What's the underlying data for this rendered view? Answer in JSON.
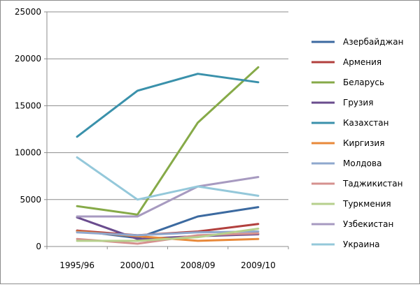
{
  "chart_data": {
    "type": "line",
    "categories": [
      "1995/96",
      "2000/01",
      "2008/09",
      "2009/10"
    ],
    "ylim": [
      0,
      25000
    ],
    "yticks": [
      0,
      5000,
      10000,
      15000,
      20000,
      25000
    ],
    "y_tick_labels": [
      "0",
      "5000",
      "10000",
      "15000",
      "20000",
      "25000"
    ],
    "grid": "horizontal major",
    "legend_position": "right",
    "series": [
      {
        "name": "Азербайджан",
        "color": "#3C6AA0",
        "values": [
          1700,
          900,
          3200,
          4200
        ]
      },
      {
        "name": "Армения",
        "color": "#B2403E",
        "values": [
          1700,
          1200,
          1600,
          2400
        ]
      },
      {
        "name": "Беларусь",
        "color": "#86AA48",
        "values": [
          4300,
          3400,
          13200,
          19100
        ]
      },
      {
        "name": "Грузия",
        "color": "#6A4C8E",
        "values": [
          3100,
          800,
          1100,
          1300
        ]
      },
      {
        "name": "Казахстан",
        "color": "#3A91AB",
        "values": [
          11700,
          16600,
          18400,
          17500
        ]
      },
      {
        "name": "Киргизия",
        "color": "#E8893A",
        "values": [
          1600,
          1100,
          600,
          800
        ]
      },
      {
        "name": "Молдова",
        "color": "#8FA8CE",
        "values": [
          1500,
          1200,
          1500,
          1600
        ]
      },
      {
        "name": "Таджикистан",
        "color": "#D5918F",
        "values": [
          800,
          300,
          1200,
          1400
        ]
      },
      {
        "name": "Туркмения",
        "color": "#B6D08D",
        "values": [
          600,
          600,
          1000,
          1900
        ]
      },
      {
        "name": "Узбекистан",
        "color": "#A79AC0",
        "values": [
          3200,
          3200,
          6400,
          7400
        ]
      },
      {
        "name": "Украина",
        "color": "#94C8DA",
        "values": [
          9500,
          5000,
          6400,
          5400
        ]
      }
    ]
  }
}
